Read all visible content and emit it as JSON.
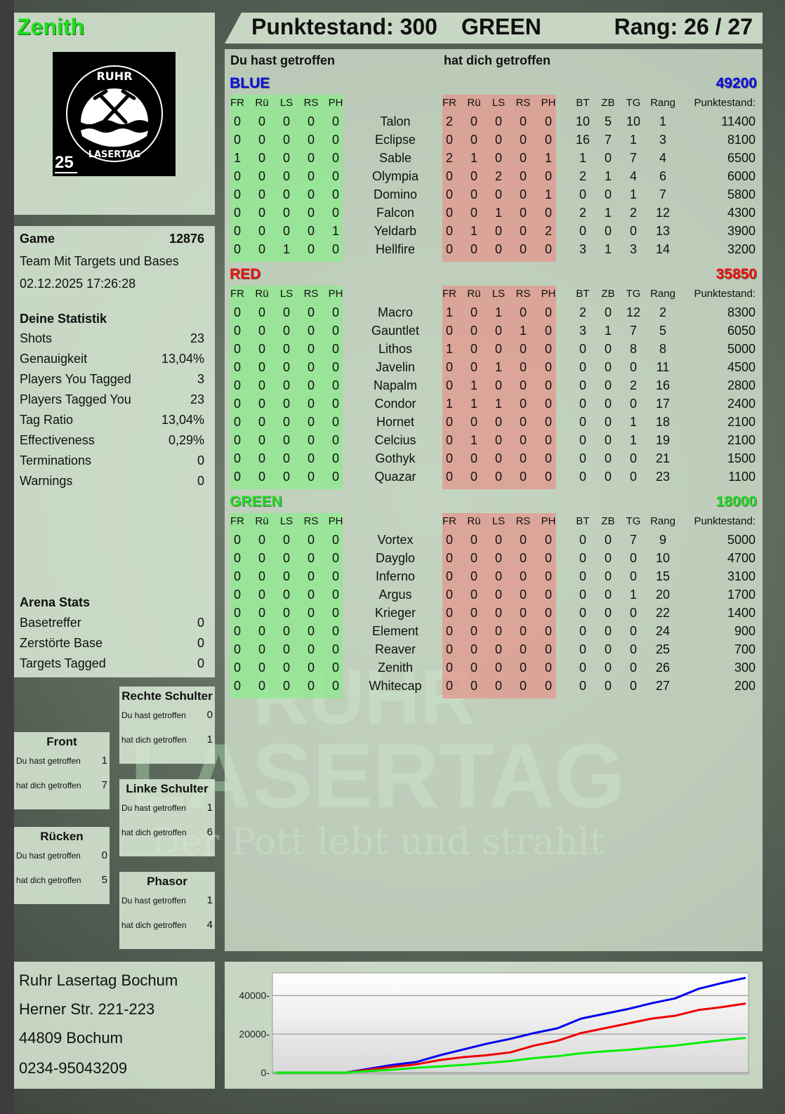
{
  "player": {
    "name": "Zenith",
    "color": "#22dd22"
  },
  "logo": {
    "top_text": "RUHR",
    "bottom_text": "LASERTAG",
    "badge": "25"
  },
  "header": {
    "score_label": "Punktestand: 300",
    "team": "GREEN",
    "rank_label": "Rang: 26 / 27"
  },
  "game": {
    "label": "Game",
    "id": "12876",
    "mode": "Team Mit Targets und Bases",
    "datetime": "02.12.2025 17:26:28"
  },
  "stats": {
    "title": "Deine Statistik",
    "items": [
      {
        "label": "Shots",
        "value": "23"
      },
      {
        "label": "Genauigkeit",
        "value": "13,04%"
      },
      {
        "label": "Players You Tagged",
        "value": "3"
      },
      {
        "label": "Players Tagged You",
        "value": "23"
      },
      {
        "label": "Tag Ratio",
        "value": "13,04%"
      },
      {
        "label": "Effectiveness",
        "value": "0,29%"
      },
      {
        "label": "Terminations",
        "value": "0"
      },
      {
        "label": "Warnings",
        "value": "0"
      }
    ]
  },
  "arena": {
    "title": "Arena Stats",
    "items": [
      {
        "label": "Basetreffer",
        "value": "0"
      },
      {
        "label": "Zerstörte Base",
        "value": "0"
      },
      {
        "label": "Targets Tagged",
        "value": "0"
      }
    ]
  },
  "zones": [
    {
      "title": "Rechte Schulter",
      "hit_label": "Du hast getroffen",
      "hit": "0",
      "got_label": "hat dich getroffen",
      "got": "1"
    },
    {
      "title": "Front",
      "hit_label": "Du hast getroffen",
      "hit": "1",
      "got_label": "hat dich getroffen",
      "got": "7"
    },
    {
      "title": "Linke Schulter",
      "hit_label": "Du hast getroffen",
      "hit": "1",
      "got_label": "hat dich getroffen",
      "got": "6"
    },
    {
      "title": "Rücken",
      "hit_label": "Du hast getroffen",
      "hit": "0",
      "got_label": "hat dich getroffen",
      "got": "5"
    },
    {
      "title": "Phasor",
      "hit_label": "Du hast getroffen",
      "hit": "1",
      "got_label": "hat dich getroffen",
      "got": "4"
    }
  ],
  "address": {
    "lines": [
      "Ruhr Lasertag Bochum",
      "Herner Str. 221-223",
      "44809 Bochum",
      "0234-95043209"
    ]
  },
  "table": {
    "you_hit_label": "Du hast getroffen",
    "hit_you_label": "hat dich getroffen",
    "hit_columns": [
      "FR",
      "Rü",
      "LS",
      "RS",
      "PH"
    ],
    "stat_columns": [
      "BT",
      "ZB",
      "TG",
      "Rang"
    ],
    "score_column": "Punktestand:",
    "teams": [
      {
        "name": "BLUE",
        "score": "49200",
        "color": "#1010dd",
        "players": [
          {
            "name": "Talon",
            "hit": [
              0,
              0,
              0,
              0,
              0
            ],
            "got": [
              2,
              0,
              0,
              0,
              0
            ],
            "stats": [
              10,
              5,
              10,
              1
            ],
            "score": "11400"
          },
          {
            "name": "Eclipse",
            "hit": [
              0,
              0,
              0,
              0,
              0
            ],
            "got": [
              0,
              0,
              0,
              0,
              0
            ],
            "stats": [
              16,
              7,
              1,
              3
            ],
            "score": "8100"
          },
          {
            "name": "Sable",
            "hit": [
              1,
              0,
              0,
              0,
              0
            ],
            "got": [
              2,
              1,
              0,
              0,
              1
            ],
            "stats": [
              1,
              0,
              7,
              4
            ],
            "score": "6500"
          },
          {
            "name": "Olympia",
            "hit": [
              0,
              0,
              0,
              0,
              0
            ],
            "got": [
              0,
              0,
              2,
              0,
              0
            ],
            "stats": [
              2,
              1,
              4,
              6
            ],
            "score": "6000"
          },
          {
            "name": "Domino",
            "hit": [
              0,
              0,
              0,
              0,
              0
            ],
            "got": [
              0,
              0,
              0,
              0,
              1
            ],
            "stats": [
              0,
              0,
              1,
              7
            ],
            "score": "5800"
          },
          {
            "name": "Falcon",
            "hit": [
              0,
              0,
              0,
              0,
              0
            ],
            "got": [
              0,
              0,
              1,
              0,
              0
            ],
            "stats": [
              2,
              1,
              2,
              12
            ],
            "score": "4300"
          },
          {
            "name": "Yeldarb",
            "hit": [
              0,
              0,
              0,
              0,
              1
            ],
            "got": [
              0,
              1,
              0,
              0,
              2
            ],
            "stats": [
              0,
              0,
              0,
              13
            ],
            "score": "3900"
          },
          {
            "name": "Hellfire",
            "hit": [
              0,
              0,
              1,
              0,
              0
            ],
            "got": [
              0,
              0,
              0,
              0,
              0
            ],
            "stats": [
              3,
              1,
              3,
              14
            ],
            "score": "3200"
          }
        ]
      },
      {
        "name": "RED",
        "score": "35850",
        "color": "#ee1111",
        "players": [
          {
            "name": "Macro",
            "hit": [
              0,
              0,
              0,
              0,
              0
            ],
            "got": [
              1,
              0,
              1,
              0,
              0
            ],
            "stats": [
              2,
              0,
              12,
              2
            ],
            "score": "8300"
          },
          {
            "name": "Gauntlet",
            "hit": [
              0,
              0,
              0,
              0,
              0
            ],
            "got": [
              0,
              0,
              0,
              1,
              0
            ],
            "stats": [
              3,
              1,
              7,
              5
            ],
            "score": "6050"
          },
          {
            "name": "Lithos",
            "hit": [
              0,
              0,
              0,
              0,
              0
            ],
            "got": [
              1,
              0,
              0,
              0,
              0
            ],
            "stats": [
              0,
              0,
              8,
              8
            ],
            "score": "5000"
          },
          {
            "name": "Javelin",
            "hit": [
              0,
              0,
              0,
              0,
              0
            ],
            "got": [
              0,
              0,
              1,
              0,
              0
            ],
            "stats": [
              0,
              0,
              0,
              11
            ],
            "score": "4500"
          },
          {
            "name": "Napalm",
            "hit": [
              0,
              0,
              0,
              0,
              0
            ],
            "got": [
              0,
              1,
              0,
              0,
              0
            ],
            "stats": [
              0,
              0,
              2,
              16
            ],
            "score": "2800"
          },
          {
            "name": "Condor",
            "hit": [
              0,
              0,
              0,
              0,
              0
            ],
            "got": [
              1,
              1,
              1,
              0,
              0
            ],
            "stats": [
              0,
              0,
              0,
              17
            ],
            "score": "2400"
          },
          {
            "name": "Hornet",
            "hit": [
              0,
              0,
              0,
              0,
              0
            ],
            "got": [
              0,
              0,
              0,
              0,
              0
            ],
            "stats": [
              0,
              0,
              1,
              18
            ],
            "score": "2100"
          },
          {
            "name": "Celcius",
            "hit": [
              0,
              0,
              0,
              0,
              0
            ],
            "got": [
              0,
              1,
              0,
              0,
              0
            ],
            "stats": [
              0,
              0,
              1,
              19
            ],
            "score": "2100"
          },
          {
            "name": "Gothyk",
            "hit": [
              0,
              0,
              0,
              0,
              0
            ],
            "got": [
              0,
              0,
              0,
              0,
              0
            ],
            "stats": [
              0,
              0,
              0,
              21
            ],
            "score": "1500"
          },
          {
            "name": "Quazar",
            "hit": [
              0,
              0,
              0,
              0,
              0
            ],
            "got": [
              0,
              0,
              0,
              0,
              0
            ],
            "stats": [
              0,
              0,
              0,
              23
            ],
            "score": "1100"
          }
        ]
      },
      {
        "name": "GREEN",
        "score": "18000",
        "color": "#22dd22",
        "players": [
          {
            "name": "Vortex",
            "hit": [
              0,
              0,
              0,
              0,
              0
            ],
            "got": [
              0,
              0,
              0,
              0,
              0
            ],
            "stats": [
              0,
              0,
              7,
              9
            ],
            "score": "5000"
          },
          {
            "name": "Dayglo",
            "hit": [
              0,
              0,
              0,
              0,
              0
            ],
            "got": [
              0,
              0,
              0,
              0,
              0
            ],
            "stats": [
              0,
              0,
              0,
              10
            ],
            "score": "4700"
          },
          {
            "name": "Inferno",
            "hit": [
              0,
              0,
              0,
              0,
              0
            ],
            "got": [
              0,
              0,
              0,
              0,
              0
            ],
            "stats": [
              0,
              0,
              0,
              15
            ],
            "score": "3100"
          },
          {
            "name": "Argus",
            "hit": [
              0,
              0,
              0,
              0,
              0
            ],
            "got": [
              0,
              0,
              0,
              0,
              0
            ],
            "stats": [
              0,
              0,
              1,
              20
            ],
            "score": "1700"
          },
          {
            "name": "Krieger",
            "hit": [
              0,
              0,
              0,
              0,
              0
            ],
            "got": [
              0,
              0,
              0,
              0,
              0
            ],
            "stats": [
              0,
              0,
              0,
              22
            ],
            "score": "1400"
          },
          {
            "name": "Element",
            "hit": [
              0,
              0,
              0,
              0,
              0
            ],
            "got": [
              0,
              0,
              0,
              0,
              0
            ],
            "stats": [
              0,
              0,
              0,
              24
            ],
            "score": "900"
          },
          {
            "name": "Reaver",
            "hit": [
              0,
              0,
              0,
              0,
              0
            ],
            "got": [
              0,
              0,
              0,
              0,
              0
            ],
            "stats": [
              0,
              0,
              0,
              25
            ],
            "score": "700"
          },
          {
            "name": "Zenith",
            "hit": [
              0,
              0,
              0,
              0,
              0
            ],
            "got": [
              0,
              0,
              0,
              0,
              0
            ],
            "stats": [
              0,
              0,
              0,
              26
            ],
            "score": "300"
          },
          {
            "name": "Whitecap",
            "hit": [
              0,
              0,
              0,
              0,
              0
            ],
            "got": [
              0,
              0,
              0,
              0,
              0
            ],
            "stats": [
              0,
              0,
              0,
              27
            ],
            "score": "200"
          }
        ]
      }
    ]
  },
  "watermark": {
    "line1": "RUHR",
    "line2": "LASERTAG",
    "line3": "Der Pott lebt und strahlt"
  },
  "chart_data": {
    "type": "line",
    "title": "",
    "xlabel": "",
    "ylabel": "",
    "yticks": [
      "0",
      "20000",
      "40000"
    ],
    "ylim": [
      0,
      51000
    ],
    "grid": true,
    "x": [
      0,
      1,
      2,
      3,
      4,
      5,
      6,
      7,
      8,
      9,
      10,
      11,
      12,
      13,
      14,
      15,
      16,
      17,
      18,
      19,
      20
    ],
    "series": [
      {
        "color": "#0000ee",
        "values": [
          0,
          0,
          0,
          0,
          2000,
          4000,
          5500,
          9000,
          12000,
          15000,
          17500,
          20500,
          23000,
          28000,
          30500,
          33000,
          36000,
          38500,
          43500,
          46500,
          49200
        ]
      },
      {
        "color": "#ee0000",
        "values": [
          0,
          0,
          0,
          0,
          1500,
          3000,
          4300,
          6500,
          8000,
          9000,
          10500,
          14000,
          16500,
          20500,
          23000,
          25500,
          28000,
          29500,
          32500,
          34000,
          35850
        ]
      },
      {
        "color": "#00ee00",
        "values": [
          0,
          0,
          0,
          0,
          800,
          1500,
          2500,
          3200,
          4000,
          5000,
          6000,
          7500,
          8500,
          10000,
          11000,
          11800,
          13000,
          14000,
          15500,
          16800,
          18000
        ]
      }
    ]
  }
}
